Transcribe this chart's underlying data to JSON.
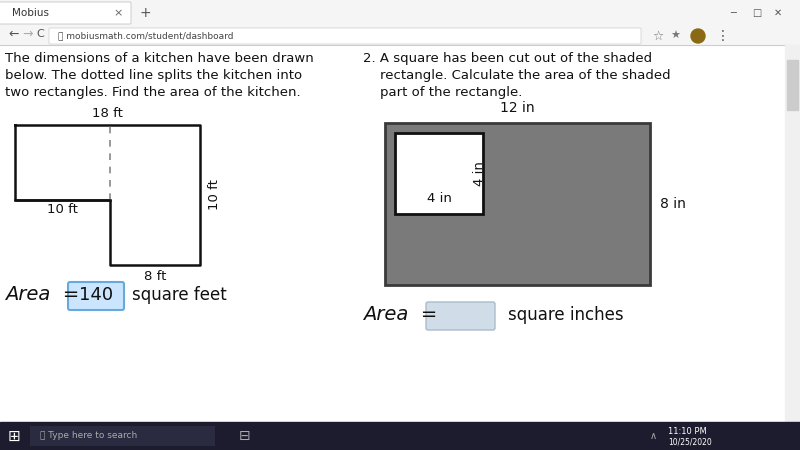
{
  "bg_color": "#f0f0f0",
  "page_bg": "#ffffff",
  "tab_text": "Mobius",
  "url": "mobiusmath.com/student/dashboard",
  "problem1_lines": [
    "The dimensions of a kitchen have been drawn",
    "below. The dotted line splits the kitchen into",
    "two rectangles. Find the area of the kitchen."
  ],
  "problem2_lines": [
    "2. A square has been cut out of the shaded",
    "    rectangle. Calculate the area of the shaded",
    "    part of the rectangle."
  ],
  "kitchen_top_label": "18 ft",
  "kitchen_right_label": "10 ft",
  "kitchen_left_label": "10 ft",
  "kitchen_bottom_label": "8 ft",
  "rect_top_label": "12 in",
  "rect_right_label": "8 in",
  "square_bottom_label": "4 in",
  "square_side_label": "4 in",
  "area1_label": "Area  =",
  "area1_answer": "140",
  "area1_unit": "square feet",
  "area2_label": "Area  =",
  "area2_unit": "square inches",
  "rect_fill": "#7a7a7a",
  "rect_edge": "#3a3a3a",
  "square_fill": "#ffffff",
  "square_edge": "#111111",
  "kitchen_color": "#111111",
  "dash_color": "#888888",
  "ans1_fill": "#cce5ff",
  "ans1_edge": "#66aadd",
  "ans2_fill": "#d0dde8",
  "ans2_edge": "#aabbcc",
  "taskbar_color": "#1c1c2e",
  "chrome_top_color": "#f5f5f5",
  "chrome_addr_color": "#eeeeee",
  "scrollbar_color": "#cccccc"
}
